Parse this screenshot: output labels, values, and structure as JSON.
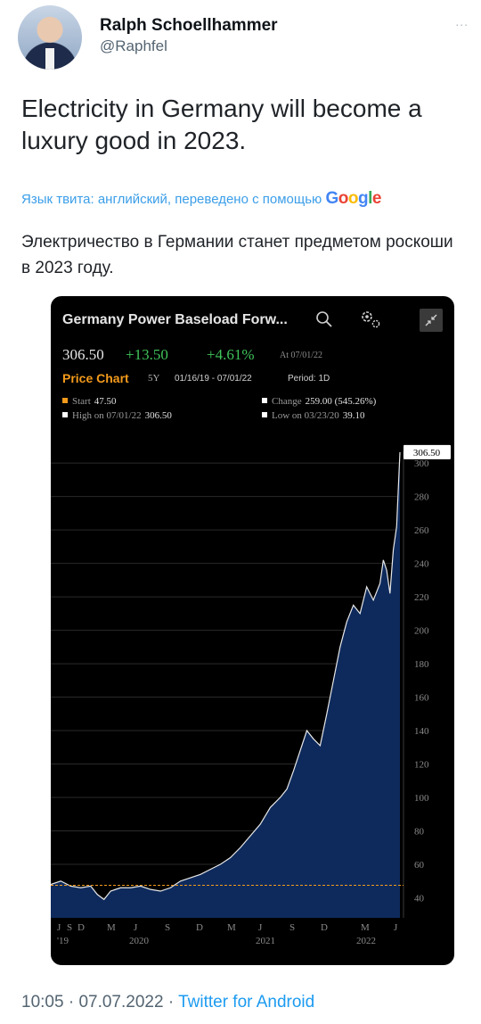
{
  "tweet": {
    "author_name": "Ralph Schoellhammer",
    "author_handle": "@Raphfel",
    "more_label": "...",
    "text": "Electricity in Germany will become a luxury good in 2023.",
    "translation_prefix": "Язык твита: английский, переведено с помощью",
    "translation_brand": [
      "G",
      "o",
      "o",
      "g",
      "l",
      "e"
    ],
    "translated_text": "Электричество в Германии станет предметом роскоши в 2023 году.",
    "time": "10:05",
    "date": "07.07.2022",
    "source": "Twitter for Android",
    "separator": "·"
  },
  "chart_card": {
    "title": "Germany Power Baseload Forw...",
    "price": "306.50",
    "change": "+13.50",
    "change_pct": "+4.61%",
    "at": "At 07/01/22",
    "price_chart_label": "Price Chart",
    "range_button": "5Y",
    "date_range": "01/16/19 - 07/01/22",
    "period": "Period: 1D",
    "stats": {
      "start_label": "Start",
      "start_value": "47.50",
      "change_label": "Change",
      "change_value": "259.00 (545.26%)",
      "high_label": "High on 07/01/22",
      "high_value": "306.50",
      "low_label": "Low on 03/23/20",
      "low_value": "39.10"
    },
    "colors": {
      "accent": "#f39a1c",
      "positive": "#3fc35a",
      "area": "#0e2a5c",
      "line": "#e8e8e8"
    }
  },
  "chart_data": {
    "type": "area",
    "title": "Germany Power Baseload Forw...",
    "x_tick_labels": [
      "J",
      "S",
      "D",
      "M",
      "J",
      "S",
      "D",
      "M",
      "J",
      "S",
      "D",
      "M",
      "J"
    ],
    "x_year_labels": [
      "'19",
      "2020",
      "2021",
      "2022"
    ],
    "y_ticks": [
      40,
      60,
      80,
      100,
      120,
      140,
      160,
      180,
      200,
      220,
      240,
      260,
      280,
      300
    ],
    "ylim": [
      28,
      307
    ],
    "last_value_label": "306.50",
    "reference_line": 47.5,
    "grid": true,
    "series": [
      {
        "values": [
          [
            0,
            48
          ],
          [
            3,
            50
          ],
          [
            6,
            47
          ],
          [
            9,
            46
          ],
          [
            12,
            47
          ],
          [
            14,
            42
          ],
          [
            16,
            39
          ],
          [
            18,
            44
          ],
          [
            21,
            46
          ],
          [
            24,
            46
          ],
          [
            27,
            47
          ],
          [
            30,
            45
          ],
          [
            33,
            44
          ],
          [
            36,
            46
          ],
          [
            39,
            50
          ],
          [
            42,
            52
          ],
          [
            45,
            54
          ],
          [
            48,
            57
          ],
          [
            51,
            60
          ],
          [
            54,
            64
          ],
          [
            57,
            70
          ],
          [
            60,
            77
          ],
          [
            63,
            84
          ],
          [
            66,
            94
          ],
          [
            69,
            100
          ],
          [
            71,
            105
          ],
          [
            73,
            116
          ],
          [
            75,
            128
          ],
          [
            77,
            140
          ],
          [
            79,
            135
          ],
          [
            81,
            131
          ],
          [
            83,
            150
          ],
          [
            85,
            170
          ],
          [
            87,
            190
          ],
          [
            89,
            205
          ],
          [
            91,
            215
          ],
          [
            93,
            210
          ],
          [
            95,
            226
          ],
          [
            97,
            218
          ],
          [
            99,
            228
          ],
          [
            100,
            242
          ],
          [
            101,
            236
          ],
          [
            102,
            222
          ],
          [
            103,
            248
          ],
          [
            104,
            262
          ],
          [
            105,
            306.5
          ]
        ]
      }
    ],
    "xlim": [
      0,
      105
    ]
  },
  "icons": {
    "search": "search-icon",
    "settings": "gear-icon",
    "expand": "expand-icon",
    "more": "more-icon"
  }
}
